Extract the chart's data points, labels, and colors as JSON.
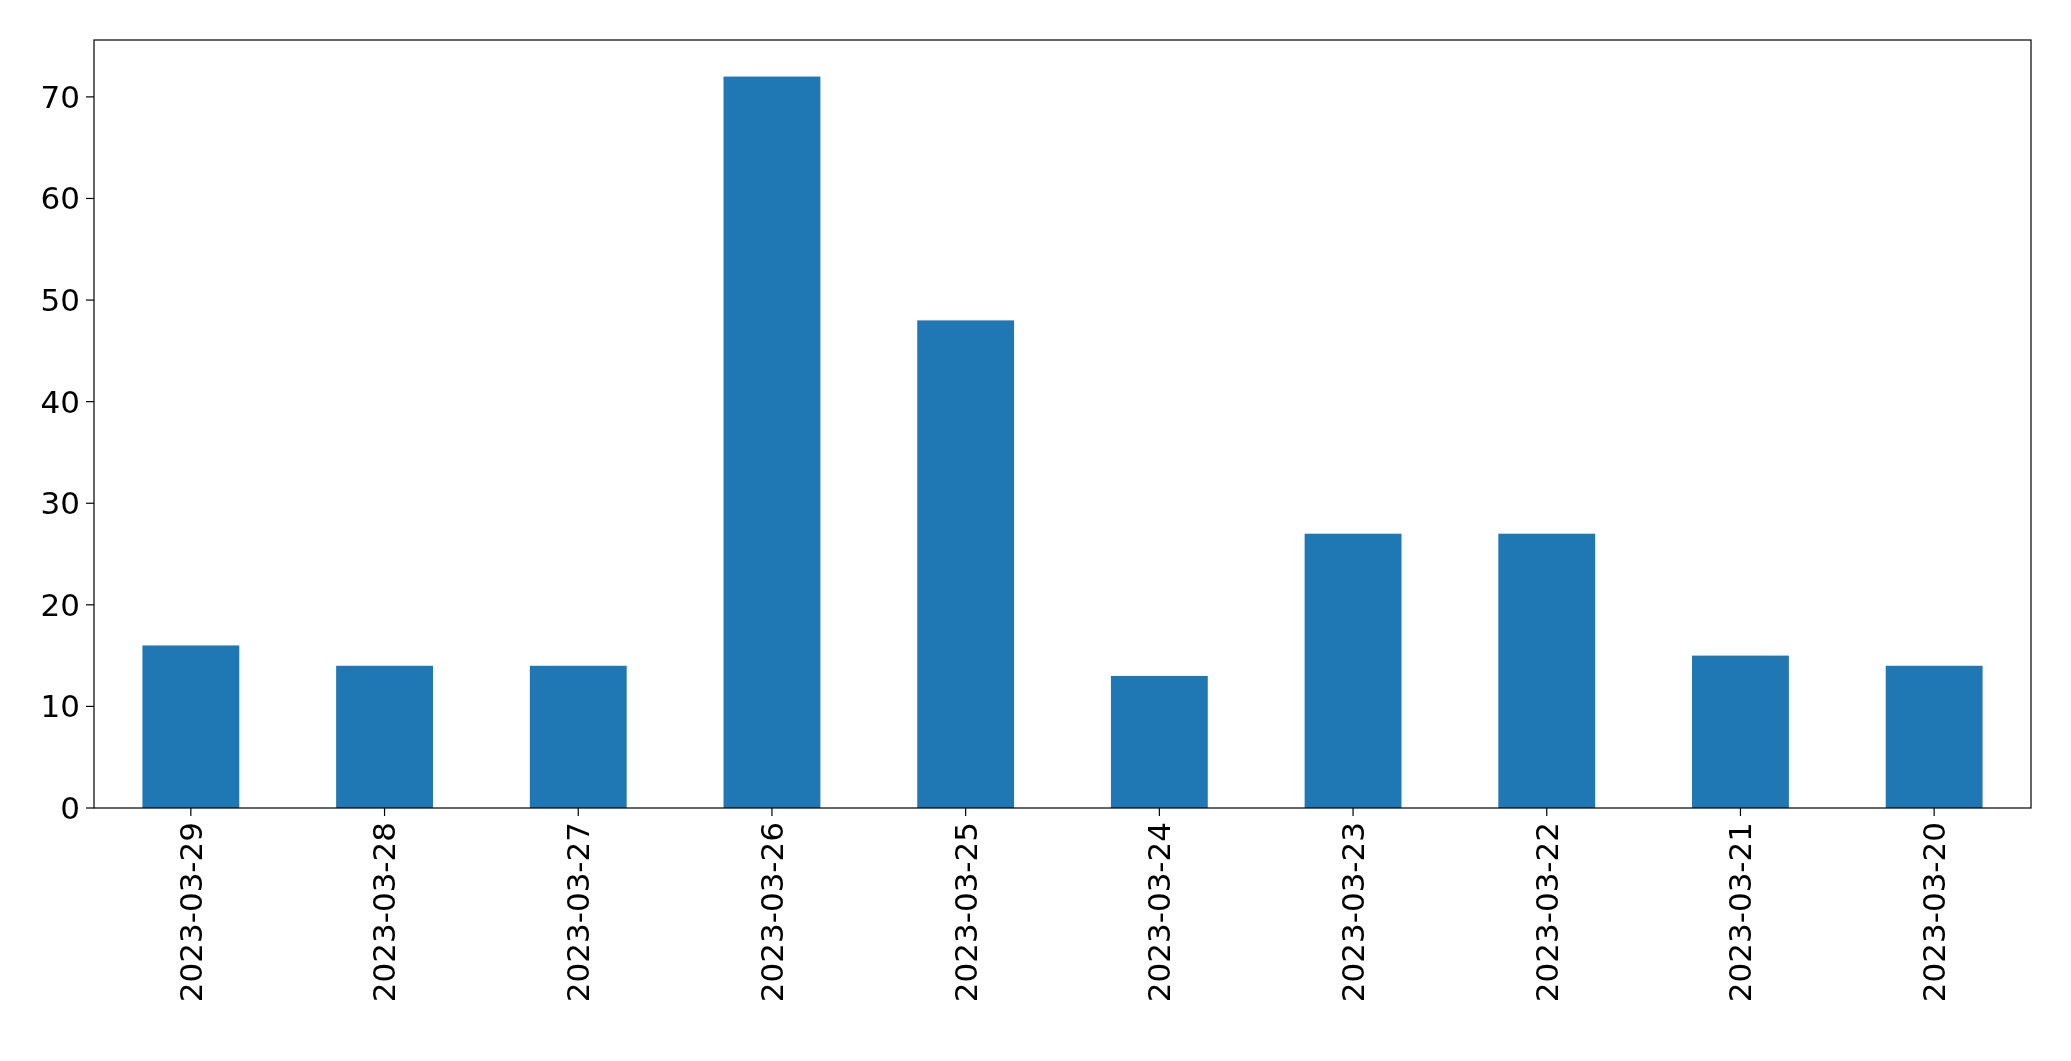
{
  "chart_data": {
    "type": "bar",
    "categories": [
      "2023-03-29",
      "2023-03-28",
      "2023-03-27",
      "2023-03-26",
      "2023-03-25",
      "2023-03-24",
      "2023-03-23",
      "2023-03-22",
      "2023-03-21",
      "2023-03-20"
    ],
    "values": [
      16,
      14,
      14,
      72,
      48,
      13,
      27,
      27,
      15,
      14
    ],
    "color": "#1f77b4",
    "ylim": [
      0,
      75.6
    ],
    "yticks": [
      0,
      10,
      20,
      30,
      40,
      50,
      60,
      70
    ],
    "grid": false
  }
}
